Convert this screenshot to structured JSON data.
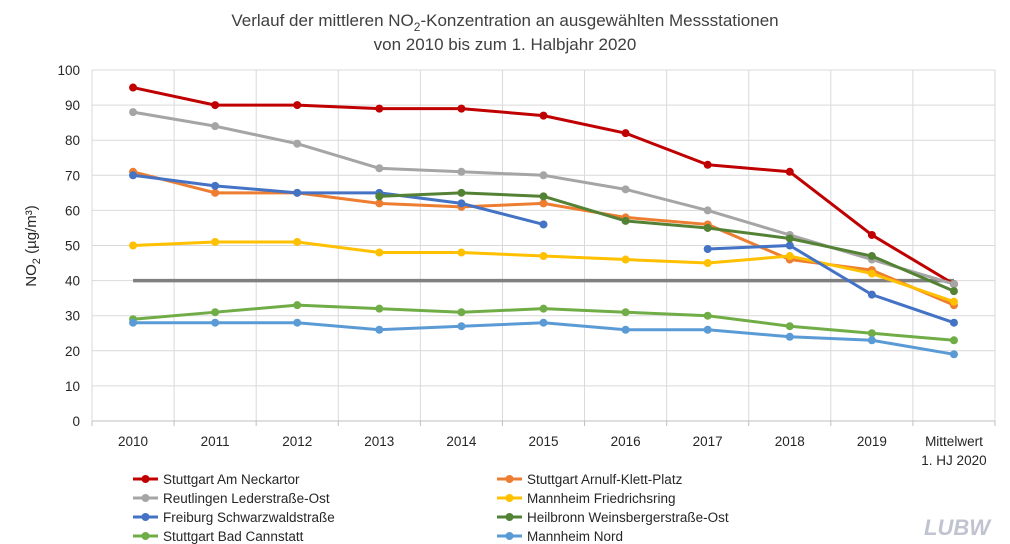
{
  "chart_data": {
    "type": "line",
    "title": {
      "line1_prefix": "Verlauf der mittleren NO",
      "line1_sub": "2",
      "line1_suffix": "-Konzentration an ausgewählten Messstationen",
      "line2": "von 2010 bis zum 1. Halbjahr 2020"
    },
    "ylabel": {
      "prefix": "NO",
      "sub": "2",
      "suffix": "  (µg/m³)"
    },
    "xlabel": "",
    "ylim": [
      0,
      100
    ],
    "ytick_step": 10,
    "categories": [
      "2010",
      "2011",
      "2012",
      "2013",
      "2014",
      "2015",
      "2016",
      "2017",
      "2018",
      "2019",
      "Mittelwert|1. HJ 2020"
    ],
    "limit_line": {
      "value": 40,
      "color": "#808080"
    },
    "grid": true,
    "legend_position": "bottom",
    "series": [
      {
        "name": "Stuttgart Am Neckartor",
        "color": "#c00000",
        "values": [
          95,
          90,
          90,
          89,
          89,
          87,
          82,
          73,
          71,
          53,
          39
        ]
      },
      {
        "name": "Stuttgart Arnulf-Klett-Platz",
        "color": "#ed7d31",
        "values": [
          71,
          65,
          65,
          62,
          61,
          62,
          58,
          56,
          46,
          43,
          33
        ]
      },
      {
        "name": "Reutlingen Lederstraße-Ost",
        "color": "#a5a5a5",
        "values": [
          88,
          84,
          79,
          72,
          71,
          70,
          66,
          60,
          53,
          46,
          39
        ]
      },
      {
        "name": "Mannheim Friedrichsring",
        "color": "#ffc000",
        "values": [
          50,
          51,
          51,
          48,
          48,
          47,
          46,
          45,
          47,
          42,
          34
        ]
      },
      {
        "name": "Freiburg Schwarzwaldstraße",
        "color": "#4472c4",
        "values": [
          70,
          67,
          65,
          65,
          62,
          56,
          null,
          49,
          50,
          36,
          28
        ]
      },
      {
        "name": "Heilbronn Weinsbergerstraße-Ost",
        "color": "#548235",
        "values": [
          null,
          null,
          null,
          64,
          65,
          64,
          57,
          55,
          52,
          47,
          37
        ]
      },
      {
        "name": "Stuttgart Bad Cannstatt",
        "color": "#70ad47",
        "values": [
          29,
          31,
          33,
          32,
          31,
          32,
          31,
          30,
          27,
          25,
          23
        ]
      },
      {
        "name": "Mannheim Nord",
        "color": "#5b9bd5",
        "values": [
          28,
          28,
          28,
          26,
          27,
          28,
          26,
          26,
          24,
          23,
          19
        ]
      }
    ]
  },
  "logo": {
    "text": "LUBW",
    "color": "#c0c4d0"
  }
}
